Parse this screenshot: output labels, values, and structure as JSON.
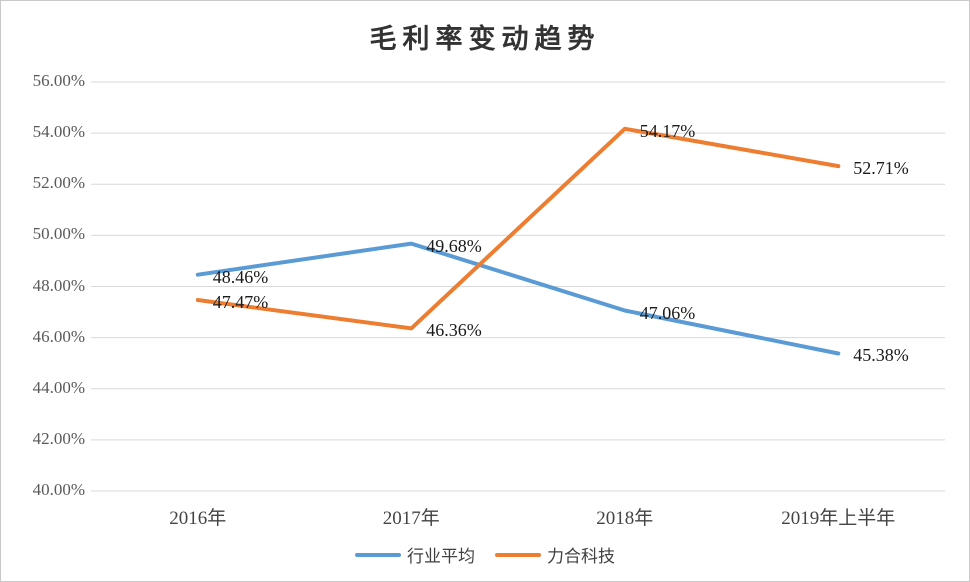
{
  "chart_data": {
    "type": "line",
    "title": "毛利率变动趋势",
    "categories": [
      "2016年",
      "2017年",
      "2018年",
      "2019年上半年"
    ],
    "series": [
      {
        "id": "industry-average",
        "name": "行业平均",
        "color": "#5B9BD5",
        "values": [
          48.46,
          49.68,
          47.06,
          45.38
        ],
        "data_labels": [
          "48.46%",
          "49.68%",
          "47.06%",
          "45.38%"
        ]
      },
      {
        "id": "lihe-technology",
        "name": "力合科技",
        "color": "#ED7D31",
        "values": [
          47.47,
          46.36,
          54.17,
          52.71
        ],
        "data_labels": [
          "47.47%",
          "46.36%",
          "54.17%",
          "52.71%"
        ]
      }
    ],
    "ylim": [
      40,
      56
    ],
    "ytick_step": 2,
    "y_tick_labels": [
      "40.00%",
      "42.00%",
      "44.00%",
      "46.00%",
      "48.00%",
      "50.00%",
      "52.00%",
      "54.00%",
      "56.00%"
    ],
    "xlabel": "",
    "ylabel": "",
    "grid": true,
    "legend_position": "bottom",
    "colors": {
      "gridline": "#D9D9D9",
      "axis_text": "#595959",
      "data_label_text": "#1A1A1A",
      "title_text": "#333333",
      "frame_border": "#C9C9C9"
    }
  }
}
